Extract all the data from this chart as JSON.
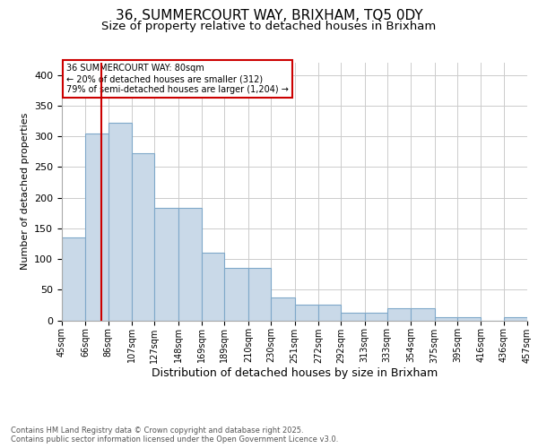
{
  "title": "36, SUMMERCOURT WAY, BRIXHAM, TQ5 0DY",
  "subtitle": "Size of property relative to detached houses in Brixham",
  "xlabel": "Distribution of detached houses by size in Brixham",
  "ylabel": "Number of detached properties",
  "bins": [
    45,
    66,
    86,
    107,
    127,
    148,
    169,
    189,
    210,
    230,
    251,
    272,
    292,
    313,
    333,
    354,
    375,
    395,
    416,
    436,
    457
  ],
  "counts": [
    135,
    305,
    322,
    272,
    184,
    184,
    110,
    85,
    85,
    37,
    25,
    25,
    13,
    13,
    20,
    20,
    5,
    5,
    0,
    5
  ],
  "bar_color": "#c9d9e8",
  "bar_edge_color": "#7fa8c9",
  "property_line_x": 80,
  "annotation_text": "36 SUMMERCOURT WAY: 80sqm\n← 20% of detached houses are smaller (312)\n79% of semi-detached houses are larger (1,204) →",
  "annotation_box_facecolor": "#ffffff",
  "annotation_box_edgecolor": "#cc0000",
  "footnote": "Contains HM Land Registry data © Crown copyright and database right 2025.\nContains public sector information licensed under the Open Government Licence v3.0.",
  "ylim": [
    0,
    420
  ],
  "grid_color": "#cccccc",
  "background_color": "#ffffff",
  "title_fontsize": 11,
  "subtitle_fontsize": 9.5,
  "ylabel_fontsize": 8,
  "xlabel_fontsize": 9,
  "ytick_fontsize": 8,
  "xtick_fontsize": 7,
  "annotation_fontsize": 7,
  "footnote_fontsize": 6,
  "footnote_color": "#555555"
}
